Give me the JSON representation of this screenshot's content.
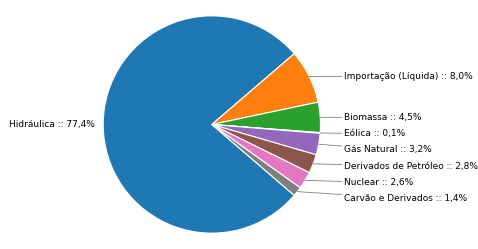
{
  "chart_data": {
    "type": "pie",
    "categories": [
      "Hidráulica :: 77,4%",
      "Importação (Líquida) :: 8,0%",
      "Biomassa :: 4,5%",
      "Eólica :: 0,1%",
      "Gás Natural :: 3,2%",
      "Derivados de Petróleo :: 2,8%",
      "Nuclear :: 2,6%",
      "Carvão e Derivados :: 1,4%"
    ],
    "values": [
      77.4,
      8.0,
      4.5,
      0.1,
      3.2,
      2.8,
      2.6,
      1.4
    ]
  }
}
